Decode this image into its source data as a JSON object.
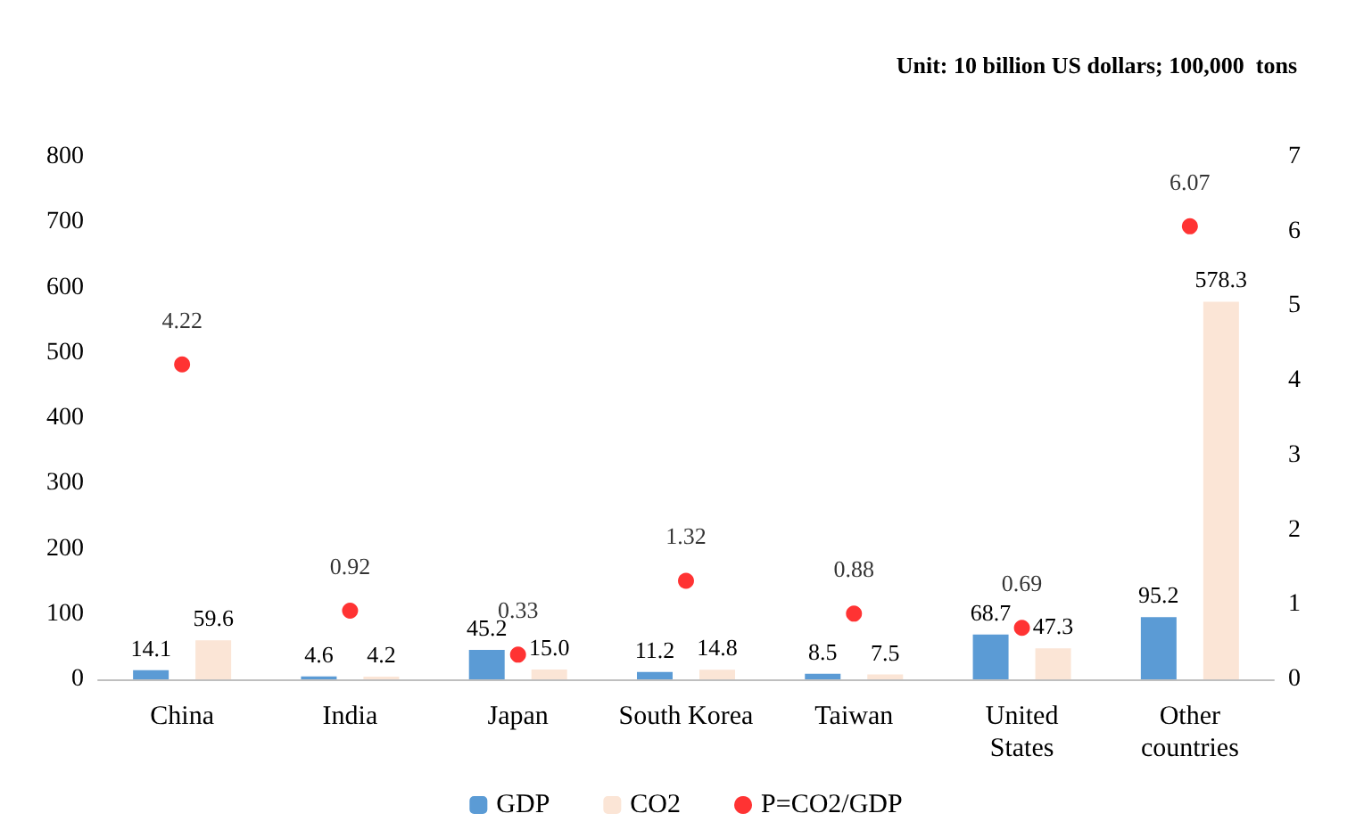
{
  "chart_data": {
    "type": "bar",
    "annotations": [
      "Unit: 10 billion US dollars; 100,000  tons"
    ],
    "categories": [
      "China",
      "India",
      "Japan",
      "South Korea",
      "Taiwan",
      "United\nStates",
      "Other\ncountries"
    ],
    "series": [
      {
        "name": "GDP",
        "color": "#5b9bd5",
        "values": [
          14.1,
          4.6,
          45.2,
          11.2,
          8.5,
          68.7,
          95.2
        ],
        "value_labels": [
          "14.1",
          "4.6",
          "45.2",
          "11.2",
          "8.5",
          "68.7",
          "95.2"
        ]
      },
      {
        "name": "CO2",
        "color": "#fbe5d6",
        "values": [
          59.6,
          4.2,
          15.0,
          14.8,
          7.5,
          47.3,
          578.3
        ],
        "value_labels": [
          "59.6",
          "4.2",
          "15.0",
          "14.8",
          "7.5",
          "47.3",
          "578.3"
        ]
      },
      {
        "name": "P=CO2/GDP",
        "type": "scatter",
        "axis": "y2",
        "color": "#ff0000",
        "values": [
          4.22,
          0.92,
          0.33,
          1.32,
          0.88,
          0.69,
          6.07
        ],
        "value_labels": [
          "4.22",
          "0.92",
          "0.33",
          "1.32",
          "0.88",
          "0.69",
          "6.07"
        ]
      }
    ],
    "ylim": [
      0,
      800
    ],
    "yticks": [
      0,
      100,
      200,
      300,
      400,
      500,
      600,
      700,
      800
    ],
    "y2lim": [
      0,
      7
    ],
    "y2ticks": [
      0,
      1,
      2,
      3,
      4,
      5,
      6,
      7
    ],
    "grid": false,
    "legend": "bottom",
    "marker": "circle"
  }
}
